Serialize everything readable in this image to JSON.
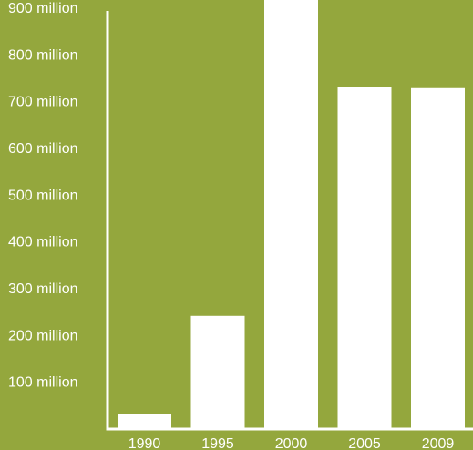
{
  "chart_data": {
    "type": "bar",
    "title": "",
    "xlabel": "",
    "ylabel": "",
    "categories": [
      "1990",
      "1995",
      "2000",
      "2005",
      "2009"
    ],
    "values": [
      30,
      240,
      940,
      730,
      727
    ],
    "ylim": [
      0,
      940
    ],
    "yticks": [
      100,
      200,
      300,
      400,
      500,
      600,
      700,
      800,
      900
    ],
    "ytick_labels": [
      "100 million",
      "200 million",
      "300 million",
      "400 million",
      "500 million",
      "600 million",
      "700 million",
      "800 million",
      "900 million"
    ],
    "grid": false,
    "legend": "none",
    "colors": {
      "background": "#94a73d",
      "bar": "#ffffff",
      "axis": "#ffffff",
      "text": "#ffffff"
    }
  }
}
